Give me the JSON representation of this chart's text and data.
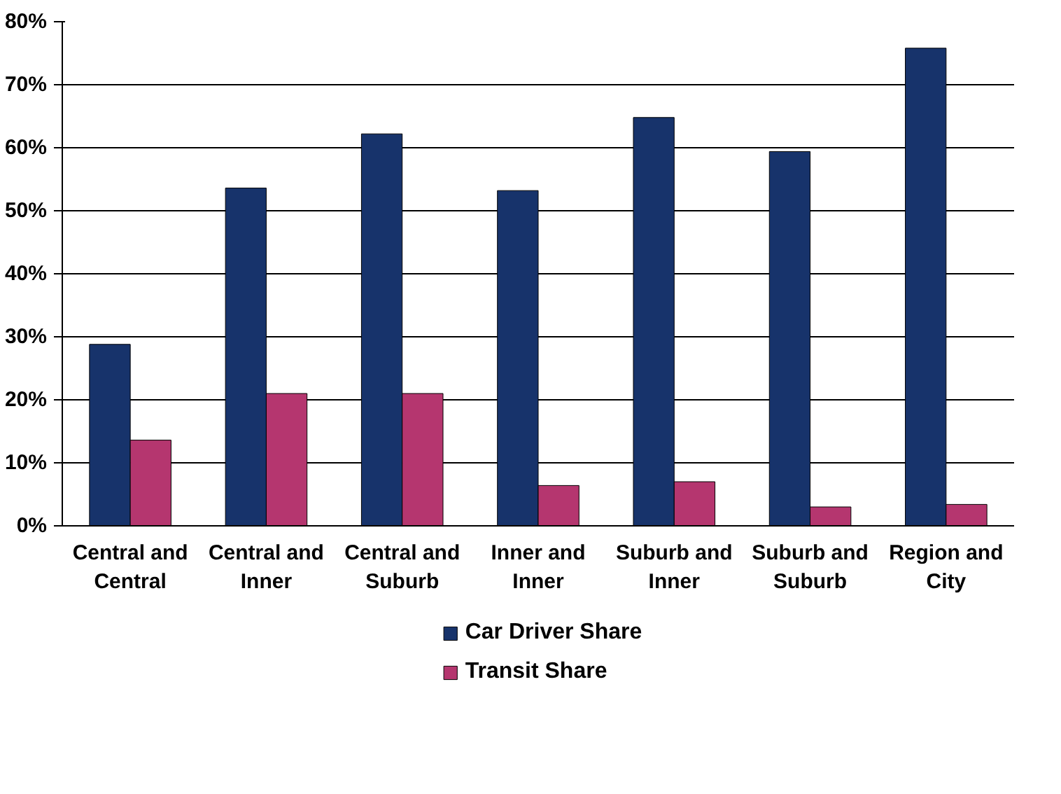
{
  "chart_data": {
    "type": "bar",
    "categories": [
      "Central and Central",
      "Central and Inner",
      "Central and Suburb",
      "Inner and Inner",
      "Suburb and Inner",
      "Suburb and Suburb",
      "Region and City"
    ],
    "series": [
      {
        "name": "Car Driver Share",
        "color": "#17336b",
        "values": [
          28.8,
          53.6,
          62.2,
          53.2,
          64.8,
          59.4,
          75.8
        ]
      },
      {
        "name": "Transit Share",
        "color": "#b5366f",
        "values": [
          13.6,
          21,
          21,
          6.4,
          7,
          3,
          3.4
        ]
      }
    ],
    "ylim": [
      0,
      80
    ],
    "yticks": [
      {
        "value": 0,
        "label": "0%"
      },
      {
        "value": 10,
        "label": "10%"
      },
      {
        "value": 20,
        "label": "20%"
      },
      {
        "value": 30,
        "label": "30%"
      },
      {
        "value": 40,
        "label": "40%"
      },
      {
        "value": 50,
        "label": "50%"
      },
      {
        "value": 60,
        "label": "60%"
      },
      {
        "value": 70,
        "label": "70%"
      },
      {
        "value": 80,
        "label": "80%"
      }
    ],
    "grid": "y",
    "legend": "bottom"
  }
}
